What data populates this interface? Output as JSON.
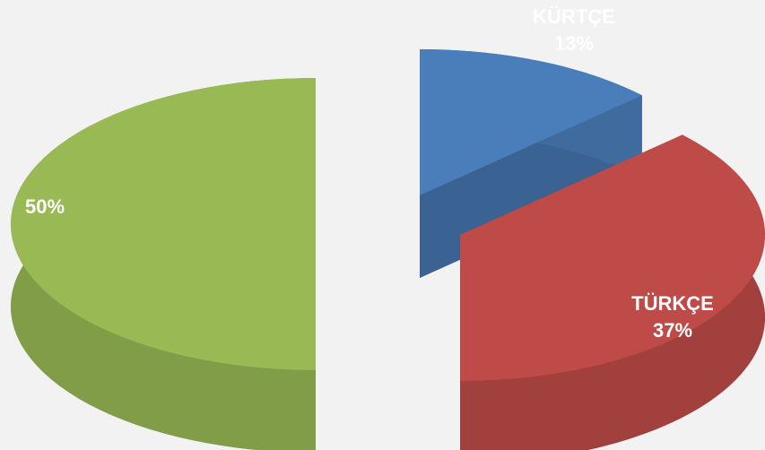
{
  "chart_data": {
    "type": "pie",
    "categories": [
      "KÜRTÇE",
      "TÜRKÇE",
      null
    ],
    "values": [
      13,
      37,
      50
    ],
    "value_labels": [
      "13%",
      "37%",
      "50%"
    ],
    "colors": [
      "#4a7ebb",
      "#be4b48",
      "#98b954"
    ]
  }
}
